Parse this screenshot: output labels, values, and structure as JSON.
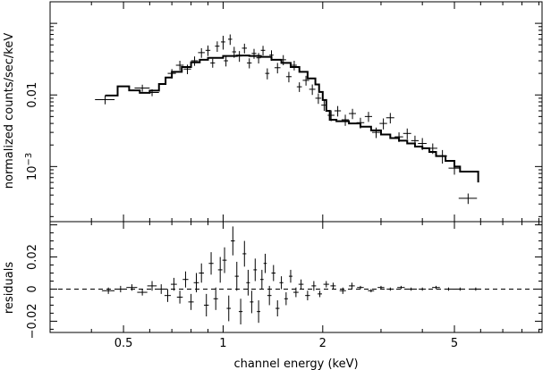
{
  "chart_data": [
    {
      "type": "line",
      "panel": "top",
      "ylabel": "normalized counts/sec/keV",
      "xlabel": "",
      "xscale": "log",
      "yscale": "log",
      "xlim": [
        0.3,
        9.2
      ],
      "ylim": [
        0.00017,
        0.2
      ],
      "xticks": [
        0.5,
        1,
        2,
        5
      ],
      "yticks": [
        0.001,
        0.01
      ],
      "ytick_labels": [
        "10^-3",
        "0.01"
      ],
      "series": [
        {
          "name": "",
          "kind": "model-step",
          "x": [
            0.44,
            0.48,
            0.52,
            0.56,
            0.6,
            0.64,
            0.67,
            0.7,
            0.75,
            0.8,
            0.85,
            0.9,
            1.0,
            1.1,
            1.2,
            1.3,
            1.4,
            1.5,
            1.6,
            1.7,
            1.8,
            1.9,
            1.95,
            2.0,
            2.05,
            2.1,
            2.2,
            2.4,
            2.6,
            2.8,
            3.0,
            3.2,
            3.4,
            3.6,
            3.8,
            4.0,
            4.2,
            4.4,
            4.7,
            5.0,
            5.2,
            5.9
          ],
          "y": [
            0.0098,
            0.0132,
            0.0116,
            0.0107,
            0.0115,
            0.0142,
            0.0175,
            0.021,
            0.0245,
            0.0285,
            0.031,
            0.033,
            0.035,
            0.0355,
            0.035,
            0.034,
            0.031,
            0.028,
            0.0245,
            0.021,
            0.017,
            0.014,
            0.011,
            0.0085,
            0.006,
            0.0045,
            0.0043,
            0.004,
            0.0036,
            0.0032,
            0.0028,
            0.0025,
            0.0023,
            0.0021,
            0.0019,
            0.0018,
            0.0016,
            0.0014,
            0.0012,
            0.001,
            0.00085,
            0.0006
          ]
        },
        {
          "name": "",
          "kind": "data-errorbars",
          "x": [
            0.44,
            0.57,
            0.61,
            0.7,
            0.74,
            0.78,
            0.82,
            0.86,
            0.9,
            0.93,
            0.96,
            1.0,
            1.02,
            1.05,
            1.08,
            1.12,
            1.16,
            1.2,
            1.24,
            1.28,
            1.32,
            1.36,
            1.4,
            1.46,
            1.52,
            1.58,
            1.64,
            1.7,
            1.78,
            1.86,
            1.94,
            2.02,
            2.12,
            2.22,
            2.34,
            2.46,
            2.6,
            2.75,
            2.9,
            3.05,
            3.2,
            3.4,
            3.6,
            3.8,
            4.0,
            4.3,
            4.6,
            5.0,
            5.5
          ],
          "y": [
            0.0086,
            0.0125,
            0.0108,
            0.02,
            0.026,
            0.023,
            0.03,
            0.039,
            0.042,
            0.028,
            0.048,
            0.055,
            0.03,
            0.06,
            0.04,
            0.035,
            0.045,
            0.028,
            0.038,
            0.033,
            0.042,
            0.02,
            0.036,
            0.024,
            0.031,
            0.018,
            0.026,
            0.013,
            0.016,
            0.012,
            0.009,
            0.0072,
            0.0052,
            0.006,
            0.0045,
            0.0055,
            0.0041,
            0.005,
            0.003,
            0.004,
            0.0048,
            0.0026,
            0.0029,
            0.0023,
            0.0021,
            0.0018,
            0.0014,
            0.00095,
            0.00036
          ],
          "xerr": [
            0.03,
            0.03,
            0.03,
            0.02,
            0.02,
            0.02,
            0.02,
            0.02,
            0.015,
            0.015,
            0.015,
            0.015,
            0.015,
            0.015,
            0.015,
            0.02,
            0.02,
            0.02,
            0.02,
            0.02,
            0.02,
            0.02,
            0.02,
            0.03,
            0.03,
            0.03,
            0.03,
            0.03,
            0.04,
            0.04,
            0.04,
            0.04,
            0.05,
            0.05,
            0.06,
            0.06,
            0.07,
            0.07,
            0.08,
            0.08,
            0.09,
            0.1,
            0.1,
            0.1,
            0.12,
            0.14,
            0.15,
            0.2,
            0.35
          ],
          "yerr": [
            0.0012,
            0.0014,
            0.0012,
            0.003,
            0.004,
            0.0035,
            0.0045,
            0.006,
            0.007,
            0.004,
            0.008,
            0.012,
            0.005,
            0.01,
            0.007,
            0.006,
            0.007,
            0.0045,
            0.006,
            0.0055,
            0.0065,
            0.0035,
            0.006,
            0.004,
            0.005,
            0.003,
            0.004,
            0.002,
            0.0025,
            0.002,
            0.0015,
            0.0012,
            0.0009,
            0.001,
            0.0008,
            0.0009,
            0.0007,
            0.0008,
            0.0005,
            0.0007,
            0.0008,
            0.0004,
            0.0005,
            0.0004,
            0.0004,
            0.0003,
            0.0003,
            0.00018,
            6e-05
          ]
        }
      ]
    },
    {
      "type": "scatter",
      "panel": "bottom",
      "ylabel": "residuals",
      "xlabel": "channel energy (keV)",
      "xscale": "log",
      "xlim": [
        0.3,
        9.2
      ],
      "ylim": [
        -0.027,
        0.042
      ],
      "xticks": [
        0.5,
        1,
        2,
        5
      ],
      "yticks": [
        -0.02,
        0,
        0.02
      ],
      "ytick_labels": [
        "−0.02",
        "0",
        "0.02"
      ],
      "zero_line": true,
      "series": [
        {
          "name": "",
          "kind": "residual-errorbars",
          "x": [
            0.45,
            0.49,
            0.53,
            0.57,
            0.61,
            0.65,
            0.68,
            0.71,
            0.74,
            0.77,
            0.8,
            0.83,
            0.86,
            0.89,
            0.92,
            0.95,
            0.98,
            1.01,
            1.04,
            1.07,
            1.1,
            1.13,
            1.16,
            1.19,
            1.22,
            1.25,
            1.28,
            1.31,
            1.34,
            1.38,
            1.42,
            1.46,
            1.5,
            1.55,
            1.6,
            1.66,
            1.72,
            1.8,
            1.88,
            1.96,
            2.05,
            2.15,
            2.3,
            2.45,
            2.6,
            2.8,
            3.0,
            3.2,
            3.45,
            3.7,
            4.0,
            4.4,
            4.8,
            5.2,
            5.8
          ],
          "y": [
            -0.001,
            0.0,
            0.001,
            -0.002,
            0.002,
            0.0,
            -0.004,
            0.003,
            -0.005,
            0.006,
            -0.008,
            0.004,
            0.01,
            -0.01,
            0.016,
            -0.006,
            0.012,
            0.018,
            -0.012,
            0.03,
            0.008,
            -0.014,
            0.022,
            0.004,
            -0.008,
            0.012,
            -0.014,
            0.006,
            0.016,
            -0.004,
            0.01,
            -0.012,
            0.004,
            -0.006,
            0.008,
            -0.002,
            0.003,
            -0.004,
            0.002,
            -0.003,
            0.003,
            0.002,
            -0.001,
            0.002,
            0.001,
            -0.001,
            0.001,
            0.0,
            0.001,
            0.0,
            0.0,
            0.001,
            0.0,
            0.0,
            0.0
          ],
          "xerr": [
            0.02,
            0.02,
            0.02,
            0.02,
            0.02,
            0.02,
            0.015,
            0.015,
            0.015,
            0.015,
            0.015,
            0.015,
            0.015,
            0.015,
            0.015,
            0.015,
            0.015,
            0.015,
            0.015,
            0.015,
            0.015,
            0.015,
            0.015,
            0.015,
            0.015,
            0.015,
            0.015,
            0.015,
            0.015,
            0.02,
            0.02,
            0.02,
            0.02,
            0.02,
            0.02,
            0.03,
            0.03,
            0.03,
            0.03,
            0.03,
            0.04,
            0.04,
            0.05,
            0.05,
            0.06,
            0.06,
            0.07,
            0.08,
            0.09,
            0.1,
            0.1,
            0.12,
            0.14,
            0.15,
            0.2
          ],
          "yerr": [
            0.002,
            0.002,
            0.002,
            0.002,
            0.003,
            0.003,
            0.004,
            0.004,
            0.004,
            0.005,
            0.005,
            0.006,
            0.006,
            0.007,
            0.007,
            0.007,
            0.008,
            0.008,
            0.008,
            0.009,
            0.009,
            0.008,
            0.008,
            0.008,
            0.007,
            0.007,
            0.007,
            0.006,
            0.006,
            0.006,
            0.005,
            0.005,
            0.004,
            0.004,
            0.004,
            0.003,
            0.003,
            0.003,
            0.003,
            0.002,
            0.002,
            0.002,
            0.002,
            0.002,
            0.001,
            0.001,
            0.001,
            0.001,
            0.001,
            0.001,
            0.001,
            0.001,
            0.001,
            0.001,
            0.001
          ]
        }
      ]
    }
  ]
}
